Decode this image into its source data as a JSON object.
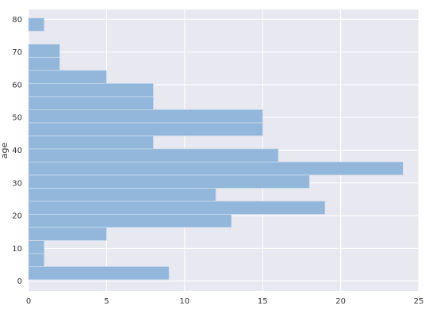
{
  "chart_data": {
    "type": "bar",
    "orientation": "horizontal",
    "ylabel": "age",
    "xlim": [
      0,
      25
    ],
    "ylim": [
      -3,
      83
    ],
    "x_ticks": [
      "0",
      "5",
      "10",
      "15",
      "20",
      "25"
    ],
    "y_ticks": [
      "0",
      "10",
      "20",
      "30",
      "40",
      "50",
      "60",
      "70",
      "80"
    ],
    "grid": true,
    "bar_color": "#92b7db",
    "background_color": "#e8e8f0",
    "grid_color": "#ffffff",
    "bins": [
      {
        "start": 0.42,
        "end": 4.4,
        "count": 9
      },
      {
        "start": 4.4,
        "end": 8.4,
        "count": 1
      },
      {
        "start": 8.4,
        "end": 12.4,
        "count": 1
      },
      {
        "start": 12.4,
        "end": 16.4,
        "count": 5
      },
      {
        "start": 16.4,
        "end": 20.4,
        "count": 13
      },
      {
        "start": 20.4,
        "end": 24.4,
        "count": 19
      },
      {
        "start": 24.4,
        "end": 28.4,
        "count": 12
      },
      {
        "start": 28.4,
        "end": 32.4,
        "count": 18
      },
      {
        "start": 32.4,
        "end": 36.4,
        "count": 24
      },
      {
        "start": 36.4,
        "end": 40.4,
        "count": 16
      },
      {
        "start": 40.4,
        "end": 44.4,
        "count": 8
      },
      {
        "start": 44.4,
        "end": 48.4,
        "count": 15
      },
      {
        "start": 48.4,
        "end": 52.4,
        "count": 15
      },
      {
        "start": 52.4,
        "end": 56.4,
        "count": 8
      },
      {
        "start": 56.4,
        "end": 60.4,
        "count": 8
      },
      {
        "start": 60.4,
        "end": 64.4,
        "count": 5
      },
      {
        "start": 64.4,
        "end": 68.4,
        "count": 2
      },
      {
        "start": 68.4,
        "end": 72.4,
        "count": 2
      },
      {
        "start": 72.4,
        "end": 76.4,
        "count": 0
      },
      {
        "start": 76.4,
        "end": 80.4,
        "count": 1
      }
    ]
  }
}
